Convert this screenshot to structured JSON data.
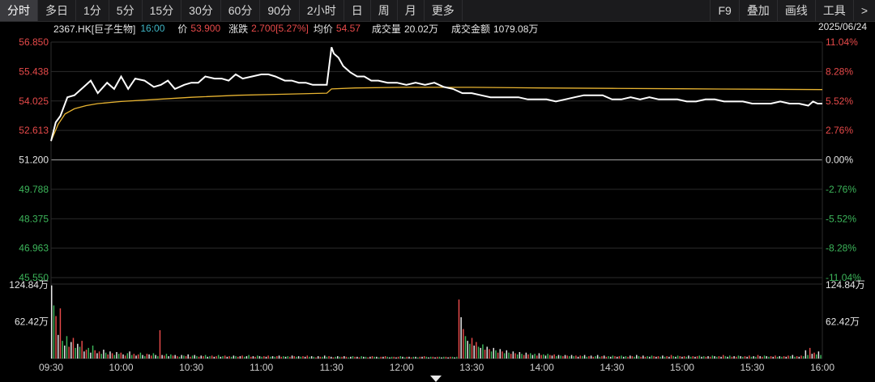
{
  "toolbar": {
    "tabs": [
      "分时",
      "多日",
      "1分",
      "5分",
      "15分",
      "30分",
      "60分",
      "90分",
      "2小时",
      "日",
      "周",
      "月",
      "更多"
    ],
    "active": "分时",
    "right": [
      "F9",
      "叠加",
      "画线",
      "工具",
      ">"
    ]
  },
  "info": {
    "code": "2367.HK[巨子生物]",
    "time": "16:00",
    "price_label": "价",
    "price": "53.900",
    "change_label": "涨跌",
    "change": "2.700[5.27%]",
    "avg_label": "均价",
    "avg": "54.57",
    "volume_label": "成交量",
    "volume": "20.02万",
    "amount_label": "成交金额",
    "amount": "1079.08万",
    "date": "2025/06/24"
  },
  "colors": {
    "up": "#e84a4a",
    "down": "#3cb55a",
    "price_line": "#ffffff",
    "avg_line": "#e8b431",
    "grid": "#2b2b2b"
  },
  "chart_data": {
    "type": "line",
    "prev_close": 51.2,
    "y_ticks": [
      "56.850",
      "55.438",
      "54.025",
      "52.613",
      "51.200",
      "49.788",
      "48.375",
      "46.963",
      "45.550"
    ],
    "pct_ticks": [
      "11.04%",
      "8.28%",
      "5.52%",
      "2.76%",
      "0.00%",
      "-2.76%",
      "-5.52%",
      "-8.28%",
      "-11.04%"
    ],
    "ylim": [
      45.55,
      56.85
    ],
    "x_ticks": [
      "09:30",
      "10:00",
      "10:30",
      "11:00",
      "11:30",
      "12:00",
      "13:30",
      "14:00",
      "14:30",
      "15:00",
      "15:30",
      "16:00"
    ],
    "price_series": {
      "x": [
        0,
        2,
        4,
        7,
        10,
        14,
        17,
        20,
        24,
        27,
        30,
        33,
        36,
        40,
        44,
        47,
        50,
        53,
        57,
        60,
        63,
        66,
        70,
        73,
        76,
        79,
        82,
        86,
        90,
        93,
        96,
        100,
        103,
        106,
        109,
        112,
        115,
        118,
        120,
        121,
        123,
        125,
        128,
        131,
        134,
        137,
        140,
        144,
        148,
        152,
        156,
        160,
        164,
        168,
        172,
        176,
        180,
        184,
        188,
        192,
        196,
        200,
        204,
        208,
        212,
        216,
        220,
        224,
        228,
        232,
        236,
        240,
        244,
        248,
        252,
        256,
        260,
        264,
        268,
        272,
        276,
        280,
        284,
        288,
        292,
        296,
        300,
        304,
        308,
        312,
        316,
        320,
        324,
        326,
        328,
        330
      ],
      "y": [
        52.1,
        53.0,
        53.3,
        54.2,
        54.3,
        54.7,
        55.0,
        54.4,
        54.9,
        54.6,
        55.2,
        54.6,
        55.1,
        55.0,
        54.7,
        54.8,
        55.0,
        54.6,
        54.8,
        54.9,
        54.9,
        55.2,
        55.1,
        55.1,
        55.0,
        55.3,
        55.1,
        55.2,
        55.3,
        55.3,
        55.2,
        55.0,
        55.0,
        54.9,
        54.9,
        54.8,
        54.8,
        54.8,
        56.6,
        56.3,
        56.1,
        55.7,
        55.4,
        55.2,
        55.2,
        55.0,
        55.0,
        54.9,
        54.9,
        54.8,
        54.9,
        54.8,
        54.9,
        54.7,
        54.6,
        54.4,
        54.4,
        54.3,
        54.2,
        54.2,
        54.2,
        54.2,
        54.1,
        54.1,
        54.1,
        54.0,
        54.1,
        54.2,
        54.3,
        54.3,
        54.3,
        54.1,
        54.1,
        54.2,
        54.1,
        54.2,
        54.1,
        54.1,
        54.1,
        54.0,
        54.0,
        54.1,
        54.1,
        54.0,
        54.0,
        54.0,
        53.9,
        53.9,
        53.9,
        54.0,
        53.9,
        53.9,
        53.8,
        54.0,
        53.9,
        53.9
      ]
    },
    "avg_series": {
      "x": [
        0,
        3,
        6,
        10,
        15,
        20,
        30,
        45,
        60,
        80,
        100,
        118,
        120,
        130,
        150,
        180,
        210,
        240,
        270,
        300,
        330
      ],
      "y": [
        52.1,
        52.9,
        53.4,
        53.65,
        53.8,
        53.9,
        54.0,
        54.1,
        54.2,
        54.3,
        54.35,
        54.4,
        54.6,
        54.65,
        54.68,
        54.68,
        54.65,
        54.63,
        54.61,
        54.59,
        54.57
      ]
    },
    "volume": {
      "ylim": [
        0,
        124.84
      ],
      "ticks": [
        "124.84万",
        "62.42万"
      ],
      "values": [
        124,
        90,
        72,
        40,
        85,
        30,
        22,
        38,
        20,
        28,
        35,
        18,
        25,
        20,
        30,
        12,
        15,
        18,
        10,
        22,
        14,
        9,
        12,
        8,
        15,
        10,
        7,
        12,
        9,
        6,
        11,
        8,
        10,
        7,
        5,
        9,
        12,
        6,
        8,
        5,
        7,
        10,
        6,
        4,
        8,
        7,
        5,
        9,
        6,
        4,
        48,
        6,
        5,
        8,
        4,
        7,
        5,
        6,
        4,
        3,
        6,
        5,
        4,
        7,
        3,
        5,
        6,
        4,
        3,
        5,
        4,
        6,
        3,
        4,
        5,
        3,
        4,
        6,
        3,
        4,
        5,
        3,
        4,
        3,
        5,
        4,
        3,
        4,
        5,
        3,
        4,
        6,
        3,
        4,
        3,
        5,
        4,
        3,
        4,
        3,
        5,
        3,
        4,
        3,
        4,
        5,
        3,
        4,
        3,
        4,
        3,
        5,
        4,
        3,
        4,
        3,
        4,
        3,
        5,
        3,
        4,
        3,
        2,
        4,
        3,
        3,
        5,
        3,
        4,
        3,
        2,
        3,
        4,
        3,
        3,
        4,
        3,
        2,
        3,
        4,
        3,
        3,
        2,
        4,
        3,
        3,
        2,
        3,
        4,
        3,
        3,
        2,
        3,
        3,
        4,
        3,
        2,
        3,
        3,
        2,
        3,
        4,
        3,
        2,
        3,
        3,
        2,
        3,
        3,
        2,
        3,
        3,
        4,
        3,
        2,
        3,
        3,
        2,
        3,
        3,
        2,
        3,
        3,
        2,
        3,
        3,
        2,
        3,
        100,
        70,
        50,
        38,
        30,
        25,
        35,
        22,
        28,
        20,
        18,
        24,
        15,
        20,
        16,
        12,
        18,
        14,
        10,
        16,
        12,
        9,
        14,
        10,
        8,
        12,
        9,
        7,
        11,
        8,
        6,
        10,
        7,
        9,
        6,
        8,
        5,
        9,
        6,
        7,
        5,
        8,
        6,
        5,
        7,
        4,
        6,
        5,
        4,
        6,
        5,
        4,
        6,
        4,
        5,
        3,
        5,
        4,
        6,
        3,
        4,
        5,
        3,
        4,
        6,
        3,
        4,
        5,
        3,
        4,
        3,
        5,
        4,
        3,
        4,
        5,
        3,
        4,
        3,
        5,
        4,
        3,
        6,
        4,
        3,
        5,
        3,
        4,
        3,
        5,
        4,
        3,
        4,
        3,
        5,
        3,
        4,
        3,
        6,
        4,
        3,
        5,
        4,
        3,
        4,
        3,
        5,
        3,
        4,
        3,
        4,
        5,
        3,
        4,
        3,
        4,
        3,
        5,
        4,
        3,
        4,
        3,
        6,
        4,
        3,
        5,
        3,
        4,
        3,
        5,
        4,
        3,
        4,
        3,
        5,
        3,
        4,
        3,
        6,
        4,
        3,
        5,
        4,
        3,
        4,
        3,
        5,
        3,
        4,
        3,
        4,
        3,
        5,
        4,
        6,
        3,
        4,
        3,
        5,
        4,
        14,
        6,
        18,
        8,
        10,
        7,
        12,
        6
      ],
      "colors": "alternating"
    }
  }
}
